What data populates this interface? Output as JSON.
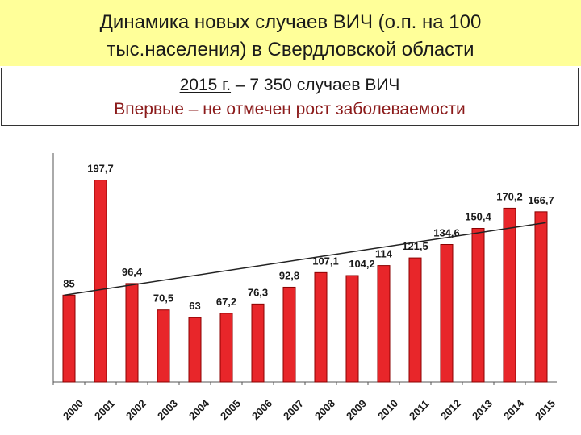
{
  "header": {
    "title_line1": "Динамика новых случаев ВИЧ (о.п. на 100",
    "title_line2": "тыс.населения) в Свердловской области"
  },
  "info": {
    "year_text": "2015 г.",
    "cases_text": " – 7 350 случаев ВИЧ",
    "note_text": "Впервые – не отмечен  рост заболеваемости"
  },
  "colors": {
    "bar": "#e8262a",
    "bar_stroke": "#8b0000",
    "title_band": "#ffff99",
    "note_text": "#8b1a1a",
    "trend": "#222222"
  },
  "chart_data": {
    "type": "bar",
    "categories": [
      "2000",
      "2001",
      "2002",
      "2003",
      "2004",
      "2005",
      "2006",
      "2007",
      "2008",
      "2009",
      "2010",
      "2011",
      "2012",
      "2013",
      "2014",
      "2015"
    ],
    "values": [
      85,
      197.7,
      96.4,
      70.5,
      63,
      67.2,
      76.3,
      92.8,
      107.1,
      104.2,
      114,
      121.5,
      134.6,
      150.4,
      170.2,
      166.7
    ],
    "data_labels": [
      "85",
      "197,7",
      "96,4",
      "70,5",
      "63",
      "67,2",
      "76,3",
      "92,8",
      "107,1",
      "104,2",
      "114",
      "121,5",
      "134,6",
      "150,4",
      "170,2",
      "166,7"
    ],
    "ylim": [
      0,
      210
    ],
    "trendline": {
      "start_value": 85,
      "end_value": 156
    },
    "grid": false,
    "legend": "none"
  }
}
